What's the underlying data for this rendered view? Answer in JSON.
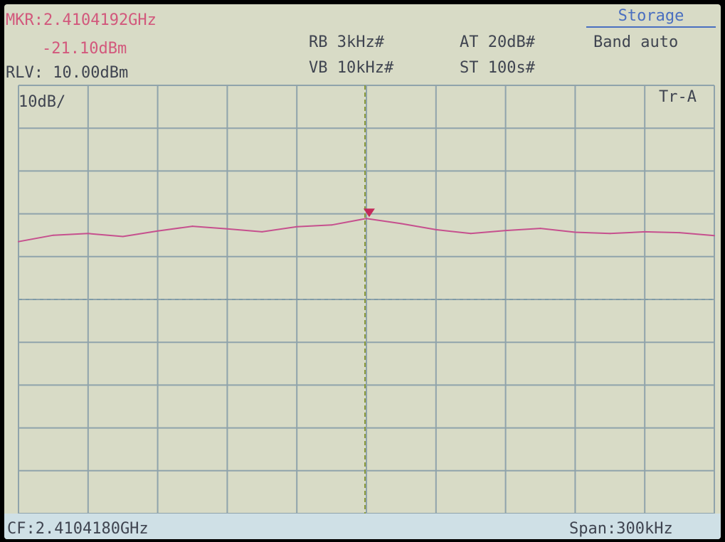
{
  "marker": {
    "frequency_label": "MKR:2.4104192GHz",
    "level_label": "-21.10dBm",
    "frequency_ghz": 2.4104192,
    "level_dbm": -21.1
  },
  "ref_level_label": "RLV: 10.00dBm",
  "settings": {
    "rbw": "RB 3kHz#",
    "vbw": "VB 10kHz#",
    "atten": "AT 20dB#",
    "sweep": "ST 100s#"
  },
  "mode": {
    "storage": "Storage",
    "band": "Band auto"
  },
  "scale_label": "10dB/",
  "trace_label": "Tr-A",
  "center_freq_label": "CF:2.4104180GHz",
  "span_label": "Span:300kHz",
  "colors": {
    "trace": "#c6508e",
    "grid": "#8fa3ab",
    "center_line": "#8a9a3a",
    "marker": "#c42a5a",
    "text_red": "#d2587c",
    "text_dark": "#3f4450",
    "background": "#d8dbc6"
  },
  "chart_data": {
    "type": "line",
    "title": "",
    "xlabel": "",
    "ylabel": "",
    "x_unit": "GHz",
    "y_unit": "dBm",
    "xlim": [
      2.410268,
      2.410568
    ],
    "ylim": [
      -90,
      10
    ],
    "grid": true,
    "x_divisions": 10,
    "y_divisions": 10,
    "reference_line_dbm": -40,
    "series": [
      {
        "x": [
          2.410268,
          2.410283,
          2.410298,
          2.410313,
          2.410328,
          2.410343,
          2.410358,
          2.410373,
          2.410388,
          2.410403,
          2.410418,
          2.410433,
          2.410448,
          2.410463,
          2.410478,
          2.410493,
          2.410508,
          2.410523,
          2.410538,
          2.410553,
          2.410568
        ],
        "values": [
          -26.5,
          -25.0,
          -24.6,
          -25.3,
          -24.0,
          -22.9,
          -23.5,
          -24.2,
          -23.0,
          -22.6,
          -21.1,
          -22.3,
          -23.7,
          -24.6,
          -23.9,
          -23.4,
          -24.3,
          -24.6,
          -24.2,
          -24.4,
          -25.1
        ]
      }
    ]
  }
}
